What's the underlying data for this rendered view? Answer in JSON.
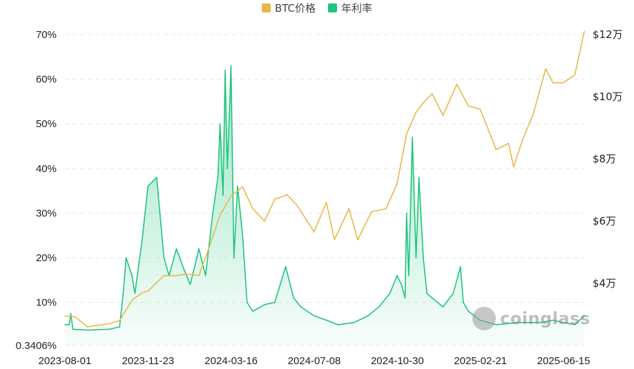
{
  "legend": [
    {
      "label": "BTC价格",
      "color": "#e8b84a"
    },
    {
      "label": "年利率",
      "color": "#1ec47f"
    }
  ],
  "watermark": "coinglass",
  "chart_data": {
    "type": "line",
    "title": "",
    "left_axis": {
      "ticks": [
        0.3406,
        10,
        20,
        30,
        40,
        50,
        60,
        70
      ],
      "tick_labels": [
        "0.3406%",
        "10%",
        "20%",
        "30%",
        "40%",
        "50%",
        "60%",
        "70%"
      ],
      "range": [
        0.3406,
        70
      ]
    },
    "right_axis": {
      "ticks": [
        40000,
        60000,
        80000,
        100000,
        120000
      ],
      "tick_labels": [
        "$4万",
        "$6万",
        "$8万",
        "$10万",
        "$12万"
      ],
      "range": [
        20000,
        120000
      ]
    },
    "x_tick_labels": [
      "2023-08-01",
      "2023-11-23",
      "2024-03-16",
      "2024-07-08",
      "2024-10-30",
      "2025-02-21",
      "2025-06-15"
    ],
    "grid": true,
    "legend_position": "top-center",
    "series": [
      {
        "name": "BTC价格",
        "axis": "right",
        "color": "#e8b84a",
        "x": [
          "2023-08-01",
          "2023-08-15",
          "2023-09-01",
          "2023-09-15",
          "2023-10-01",
          "2023-10-15",
          "2023-11-01",
          "2023-11-15",
          "2023-11-23",
          "2023-12-15",
          "2024-01-01",
          "2024-01-15",
          "2024-02-01",
          "2024-02-15",
          "2024-03-01",
          "2024-03-16",
          "2024-04-01",
          "2024-04-15",
          "2024-05-01",
          "2024-05-15",
          "2024-06-01",
          "2024-06-15",
          "2024-07-08",
          "2024-07-25",
          "2024-08-05",
          "2024-08-25",
          "2024-09-06",
          "2024-09-25",
          "2024-10-15",
          "2024-10-30",
          "2024-11-12",
          "2024-11-25",
          "2024-12-05",
          "2024-12-17",
          "2025-01-01",
          "2025-01-20",
          "2025-02-05",
          "2025-02-21",
          "2025-03-05",
          "2025-03-15",
          "2025-04-01",
          "2025-04-08",
          "2025-04-20",
          "2025-05-05",
          "2025-05-22",
          "2025-06-01",
          "2025-06-15",
          "2025-07-01",
          "2025-07-14"
        ],
        "values": [
          29500,
          29200,
          26000,
          26500,
          27000,
          28000,
          34500,
          37000,
          37500,
          42500,
          42500,
          43000,
          42500,
          51500,
          62000,
          68000,
          71000,
          64000,
          60000,
          67000,
          68500,
          65000,
          56500,
          66000,
          54000,
          64000,
          54000,
          63000,
          64000,
          72000,
          88000,
          95000,
          98000,
          101000,
          94000,
          104000,
          97000,
          96000,
          89000,
          83000,
          85000,
          77500,
          86000,
          94500,
          109000,
          104500,
          104500,
          107000,
          121000
        ]
      },
      {
        "name": "年利率",
        "axis": "left",
        "color": "#1ec47f",
        "x": [
          "2023-08-01",
          "2023-08-07",
          "2023-08-09",
          "2023-08-12",
          "2023-09-01",
          "2023-10-01",
          "2023-10-15",
          "2023-10-20",
          "2023-10-24",
          "2023-11-01",
          "2023-11-05",
          "2023-11-15",
          "2023-11-23",
          "2023-12-05",
          "2023-12-15",
          "2023-12-22",
          "2024-01-01",
          "2024-01-10",
          "2024-01-20",
          "2024-02-01",
          "2024-02-10",
          "2024-02-20",
          "2024-02-27",
          "2024-03-01",
          "2024-03-05",
          "2024-03-08",
          "2024-03-11",
          "2024-03-16",
          "2024-03-20",
          "2024-03-25",
          "2024-04-01",
          "2024-04-07",
          "2024-04-15",
          "2024-05-01",
          "2024-05-15",
          "2024-05-30",
          "2024-06-10",
          "2024-06-20",
          "2024-07-08",
          "2024-07-25",
          "2024-08-10",
          "2024-09-01",
          "2024-09-20",
          "2024-10-05",
          "2024-10-20",
          "2024-10-30",
          "2024-11-05",
          "2024-11-10",
          "2024-11-12",
          "2024-11-15",
          "2024-11-20",
          "2024-11-25",
          "2024-11-29",
          "2024-12-05",
          "2024-12-10",
          "2024-12-17",
          "2025-01-01",
          "2025-01-15",
          "2025-01-25",
          "2025-01-29",
          "2025-02-05",
          "2025-02-21",
          "2025-03-15",
          "2025-04-15",
          "2025-05-15",
          "2025-06-01",
          "2025-06-15",
          "2025-07-01",
          "2025-07-14"
        ],
        "values": [
          5,
          5,
          7.5,
          4,
          3.8,
          4,
          4.5,
          12,
          20,
          16,
          12,
          24,
          36,
          38,
          20,
          16,
          22,
          18,
          14,
          22,
          16,
          30,
          38,
          50,
          34,
          62,
          40,
          63,
          20,
          36,
          25,
          10,
          8,
          9.5,
          10,
          18,
          11,
          9,
          7,
          6,
          5,
          5.5,
          7,
          9,
          12,
          16,
          14,
          11,
          30,
          16,
          47,
          20,
          38,
          20,
          12,
          11,
          9,
          12,
          18,
          10,
          8,
          6,
          5,
          5.5,
          5.5,
          6,
          5.5,
          5,
          7
        ]
      }
    ]
  }
}
